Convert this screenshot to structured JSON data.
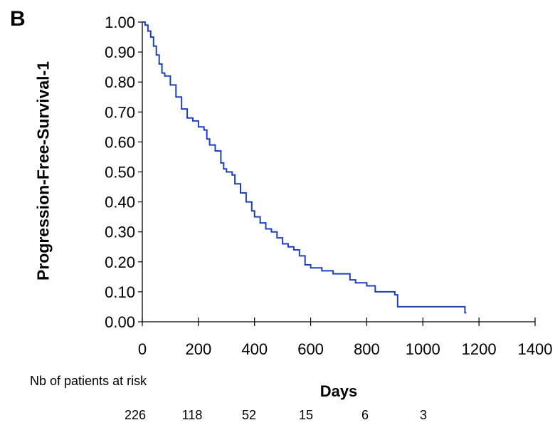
{
  "chart_data": {
    "type": "line",
    "panel_label": "B",
    "title": "",
    "xlabel": "Days",
    "ylabel": "Progression-Free-Survival-1",
    "xlim": [
      0,
      1400
    ],
    "ylim": [
      0,
      1
    ],
    "x_ticks": [
      0,
      200,
      400,
      600,
      800,
      1000,
      1200,
      1400
    ],
    "y_ticks": [
      "0.00",
      "0.10",
      "0.20",
      "0.30",
      "0.40",
      "0.50",
      "0.60",
      "0.70",
      "0.80",
      "0.90",
      "1.00"
    ],
    "grid": false,
    "line_color": "#1f3fbf",
    "series": [
      {
        "step": true,
        "x": [
          0,
          10,
          20,
          30,
          40,
          50,
          60,
          70,
          80,
          100,
          120,
          140,
          160,
          180,
          200,
          220,
          230,
          240,
          260,
          280,
          290,
          300,
          320,
          330,
          350,
          370,
          390,
          400,
          420,
          440,
          460,
          480,
          500,
          520,
          540,
          560,
          580,
          600,
          640,
          680,
          740,
          760,
          800,
          830,
          900,
          910,
          920,
          1150,
          1155
        ],
        "y": [
          1.0,
          0.99,
          0.97,
          0.95,
          0.92,
          0.89,
          0.86,
          0.83,
          0.82,
          0.79,
          0.75,
          0.71,
          0.68,
          0.67,
          0.65,
          0.64,
          0.61,
          0.59,
          0.57,
          0.53,
          0.51,
          0.5,
          0.49,
          0.46,
          0.43,
          0.4,
          0.37,
          0.35,
          0.33,
          0.31,
          0.3,
          0.28,
          0.26,
          0.25,
          0.24,
          0.22,
          0.19,
          0.18,
          0.17,
          0.16,
          0.14,
          0.13,
          0.12,
          0.1,
          0.09,
          0.05,
          0.05,
          0.03,
          0.03
        ]
      }
    ]
  },
  "risk_table": {
    "title": "Nb of patients at risk",
    "values": [
      "226",
      "118",
      "52",
      "15",
      "6",
      "3"
    ]
  }
}
